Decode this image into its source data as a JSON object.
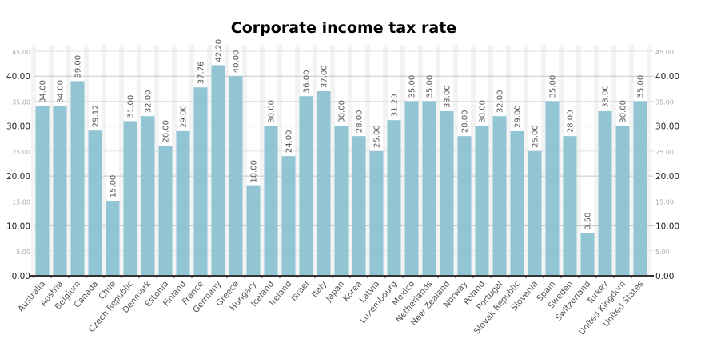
{
  "chart_data": {
    "type": "bar",
    "title": "Corporate income tax rate",
    "categories": [
      "Australia",
      "Austria",
      "Belgium",
      "Canada",
      "Chile",
      "Czech Republic",
      "Denmark",
      "Estonia",
      "Finland",
      "France",
      "Germany",
      "Greece",
      "Hungary",
      "Iceland",
      "Ireland",
      "Israel",
      "Italy",
      "Japan",
      "Korea",
      "Latvia",
      "Luxembourg",
      "Mexico",
      "Netherlands",
      "New Zealand",
      "Norway",
      "Poland",
      "Portugal",
      "Slovak Republic",
      "Slovenia",
      "Spain",
      "Sweden",
      "Switzerland",
      "Turkey",
      "United Kingdom",
      "United States"
    ],
    "values": [
      34.0,
      34.0,
      39.0,
      29.12,
      15.0,
      31.0,
      32.0,
      26.0,
      29.0,
      37.76,
      42.2,
      40.0,
      18.0,
      30.0,
      24.0,
      36.0,
      37.0,
      30.0,
      28.0,
      25.0,
      31.2,
      35.0,
      35.0,
      33.0,
      28.0,
      30.0,
      32.0,
      29.0,
      25.0,
      35.0,
      28.0,
      8.5,
      33.0,
      30.0,
      35.0
    ],
    "ylim": [
      0,
      45
    ],
    "yticks": [
      "0.00",
      "5.00",
      "10.00",
      "15.00",
      "20.00",
      "25.00",
      "30.00",
      "35.00",
      "40.00",
      "45.00"
    ],
    "grid": true,
    "bar_color": "#92c5d3",
    "xlabel": "",
    "ylabel": ""
  }
}
